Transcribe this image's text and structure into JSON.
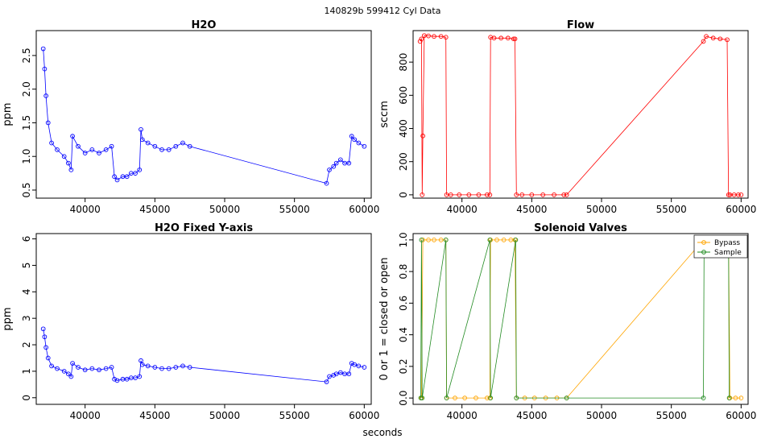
{
  "figure": {
    "suptitle": "140829b    599412   Cyl Data",
    "xlabel": "seconds"
  },
  "chart_data": [
    {
      "id": "h2o",
      "type": "scatter",
      "title": "H2O",
      "xlabel": "",
      "ylabel": "ppm",
      "color": "#0000ff",
      "xlim": [
        36500,
        60500
      ],
      "ylim": [
        0.38,
        2.87
      ],
      "xticks": [
        40000,
        45000,
        50000,
        55000,
        60000
      ],
      "xtick_labels": [
        "40000",
        "45000",
        "50000",
        "55000",
        "60000"
      ],
      "yticks": [
        0.5,
        1.0,
        1.5,
        2.0,
        2.5
      ],
      "ytick_labels": [
        "0.5",
        "1.0",
        "1.5",
        "2.0",
        "2.5"
      ],
      "x": [
        37000,
        37100,
        37200,
        37350,
        37600,
        38000,
        38500,
        38800,
        39000,
        39100,
        39500,
        40000,
        40500,
        41000,
        41500,
        41900,
        42100,
        42300,
        42700,
        43000,
        43300,
        43600,
        43900,
        44000,
        44100,
        44500,
        45000,
        45500,
        46000,
        46500,
        47000,
        47500,
        57300,
        57500,
        57800,
        58000,
        58300,
        58600,
        58900,
        59100,
        59300,
        59600,
        60000
      ],
      "y": [
        2.6,
        2.3,
        1.9,
        1.5,
        1.2,
        1.1,
        1.0,
        0.9,
        0.8,
        1.3,
        1.15,
        1.05,
        1.1,
        1.05,
        1.1,
        1.15,
        0.7,
        0.65,
        0.7,
        0.7,
        0.75,
        0.75,
        0.8,
        1.4,
        1.25,
        1.2,
        1.15,
        1.1,
        1.1,
        1.15,
        1.2,
        1.15,
        0.6,
        0.8,
        0.85,
        0.9,
        0.95,
        0.9,
        0.9,
        1.3,
        1.25,
        1.2,
        1.15
      ]
    },
    {
      "id": "flow",
      "type": "scatter",
      "title": "Flow",
      "xlabel": "",
      "ylabel": "sccm",
      "color": "#ff0000",
      "xlim": [
        36500,
        60500
      ],
      "ylim": [
        -20,
        990
      ],
      "xticks": [
        40000,
        45000,
        50000,
        55000,
        60000
      ],
      "xtick_labels": [
        "40000",
        "45000",
        "50000",
        "55000",
        "60000"
      ],
      "yticks": [
        0,
        200,
        400,
        600,
        800
      ],
      "ytick_labels": [
        "0",
        "200",
        "400",
        "600",
        "800"
      ],
      "x": [
        37000,
        37100,
        37150,
        37200,
        37300,
        37600,
        38000,
        38500,
        38850,
        38900,
        39200,
        39800,
        40500,
        41200,
        41800,
        42000,
        42050,
        42300,
        42800,
        43300,
        43700,
        43800,
        43900,
        44300,
        45000,
        45800,
        46600,
        47300,
        47500,
        57300,
        57500,
        58000,
        58500,
        59000,
        59100,
        59200,
        59500,
        59800,
        60000
      ],
      "y": [
        925,
        940,
        0,
        355,
        960,
        958,
        955,
        955,
        950,
        0,
        0,
        0,
        0,
        0,
        0,
        0,
        950,
        945,
        945,
        945,
        940,
        940,
        0,
        0,
        0,
        0,
        0,
        0,
        0,
        925,
        955,
        945,
        940,
        935,
        0,
        0,
        0,
        0,
        0
      ]
    },
    {
      "id": "h2o_fixed",
      "type": "scatter",
      "title": "H2O Fixed Y-axis",
      "xlabel": "",
      "ylabel": "ppm",
      "color": "#0000ff",
      "xlim": [
        36500,
        60500
      ],
      "ylim": [
        -0.25,
        6.2
      ],
      "xticks": [
        40000,
        45000,
        50000,
        55000,
        60000
      ],
      "xtick_labels": [
        "40000",
        "45000",
        "50000",
        "55000",
        "60000"
      ],
      "yticks": [
        0,
        1,
        2,
        3,
        4,
        5,
        6
      ],
      "ytick_labels": [
        "0",
        "1",
        "2",
        "3",
        "4",
        "5",
        "6"
      ],
      "x": [
        37000,
        37100,
        37200,
        37350,
        37600,
        38000,
        38500,
        38800,
        39000,
        39100,
        39500,
        40000,
        40500,
        41000,
        41500,
        41900,
        42100,
        42300,
        42700,
        43000,
        43300,
        43600,
        43900,
        44000,
        44100,
        44500,
        45000,
        45500,
        46000,
        46500,
        47000,
        47500,
        57300,
        57500,
        57800,
        58000,
        58300,
        58600,
        58900,
        59100,
        59300,
        59600,
        60000
      ],
      "y": [
        2.6,
        2.3,
        1.9,
        1.5,
        1.2,
        1.1,
        1.0,
        0.9,
        0.8,
        1.3,
        1.15,
        1.05,
        1.1,
        1.05,
        1.1,
        1.15,
        0.7,
        0.65,
        0.7,
        0.7,
        0.75,
        0.75,
        0.8,
        1.4,
        1.25,
        1.2,
        1.15,
        1.1,
        1.1,
        1.15,
        1.2,
        1.15,
        0.6,
        0.8,
        0.85,
        0.9,
        0.95,
        0.9,
        0.9,
        1.3,
        1.25,
        1.2,
        1.15
      ]
    },
    {
      "id": "solenoid",
      "type": "line",
      "title": "Solenoid Valves",
      "xlabel": "",
      "ylabel": "0 or 1 = closed or open",
      "xlim": [
        36500,
        60500
      ],
      "ylim": [
        -0.04,
        1.04
      ],
      "xticks": [
        40000,
        45000,
        50000,
        55000,
        60000
      ],
      "xtick_labels": [
        "40000",
        "45000",
        "50000",
        "55000",
        "60000"
      ],
      "yticks": [
        0.0,
        0.2,
        0.4,
        0.6,
        0.8,
        1.0
      ],
      "ytick_labels": [
        "0.0",
        "0.2",
        "0.4",
        "0.6",
        "0.8",
        "1.0"
      ],
      "legend": {
        "position": "top-right"
      },
      "series": [
        {
          "name": "Bypass",
          "color": "#ffa500",
          "x": [
            37100,
            37200,
            37600,
            38000,
            38500,
            38850,
            38900,
            39500,
            40200,
            41000,
            41800,
            42000,
            42050,
            42500,
            43000,
            43500,
            43800,
            43900,
            44500,
            45200,
            46000,
            46800,
            47500,
            57300,
            59100,
            59200,
            59600,
            60000
          ],
          "y": [
            0,
            1,
            1,
            1,
            1,
            1,
            0,
            0,
            0,
            0,
            0,
            0,
            1,
            1,
            1,
            1,
            1,
            0,
            0,
            0,
            0,
            0,
            0,
            1,
            1,
            0,
            0,
            0
          ]
        },
        {
          "name": "Sample",
          "color": "#228b22",
          "x": [
            37050,
            37100,
            37150,
            38850,
            38900,
            42000,
            42050,
            43850,
            43900,
            47500,
            57300,
            57350,
            59100,
            59150
          ],
          "y": [
            0,
            1,
            0,
            1,
            0,
            1,
            0,
            1,
            0,
            0,
            0,
            1,
            1,
            0
          ]
        }
      ]
    }
  ]
}
